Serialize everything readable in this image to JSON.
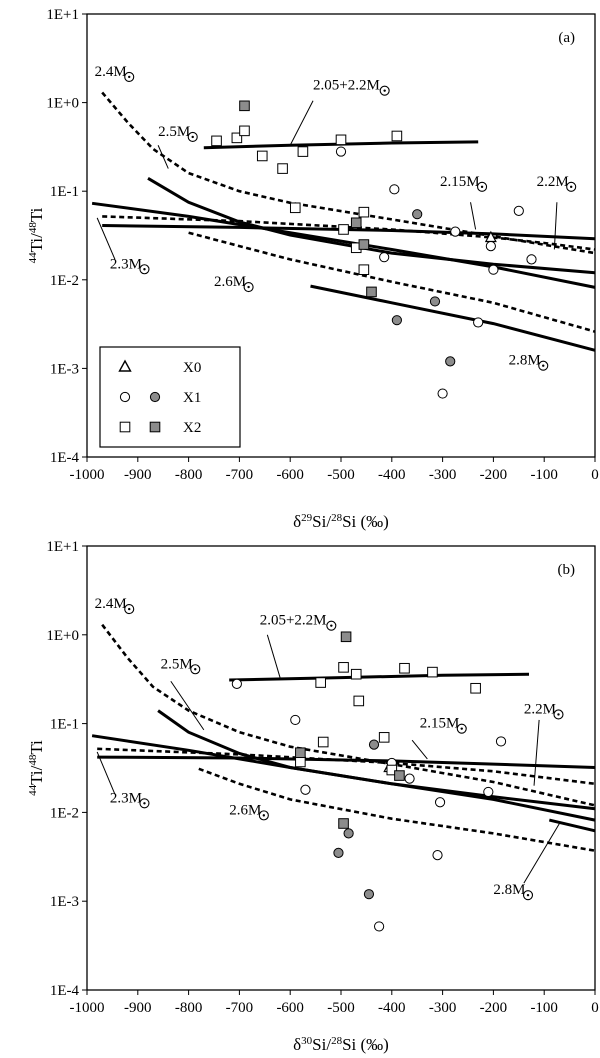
{
  "chart_data": [
    {
      "type": "scatter",
      "panel_label": "(a)",
      "xlabel": "δ29Si/28Si (‰)",
      "xlabel_parts": {
        "pre": "δ",
        "sup1": "29",
        "mid": "Si/",
        "sup2": "28",
        "post": "Si (‰)"
      },
      "ylabel": "44Ti/48Ti",
      "xlim": [
        -1000,
        0
      ],
      "ylim": [
        0.0001,
        10
      ],
      "yscale": "log",
      "xticks": [
        -1000,
        -900,
        -800,
        -700,
        -600,
        -500,
        -400,
        -300,
        -200,
        -100,
        0
      ],
      "yticks": [
        {
          "v": 0.0001,
          "label": "1E-4"
        },
        {
          "v": 0.001,
          "label": "1E-3"
        },
        {
          "v": 0.01,
          "label": "1E-2"
        },
        {
          "v": 0.1,
          "label": "1E-1"
        },
        {
          "v": 1,
          "label": "1E+0"
        },
        {
          "v": 10,
          "label": "1E+1"
        }
      ],
      "legend": {
        "position": "bottom-left",
        "entries": [
          "X0",
          "X1",
          "X2"
        ]
      },
      "series": [
        {
          "name": "X0",
          "marker": "triangle-open",
          "points": [
            [
              -205,
              0.03
            ]
          ]
        },
        {
          "name": "X1",
          "marker": "circle-open",
          "points": [
            [
              -500,
              0.28
            ],
            [
              -395,
              0.105
            ],
            [
              -415,
              0.018
            ],
            [
              -275,
              0.035
            ],
            [
              -205,
              0.024
            ],
            [
              -200,
              0.013
            ],
            [
              -150,
              0.06
            ],
            [
              -125,
              0.017
            ],
            [
              -230,
              0.0033
            ],
            [
              -300,
              0.00052
            ]
          ]
        },
        {
          "name": "X1",
          "marker": "circle-filled",
          "points": [
            [
              -350,
              0.055
            ],
            [
              -390,
              0.0035
            ],
            [
              -315,
              0.0057
            ],
            [
              -285,
              0.0012
            ]
          ]
        },
        {
          "name": "X2",
          "marker": "square-open",
          "points": [
            [
              -745,
              0.37
            ],
            [
              -705,
              0.4
            ],
            [
              -690,
              0.48
            ],
            [
              -655,
              0.25
            ],
            [
              -615,
              0.18
            ],
            [
              -575,
              0.28
            ],
            [
              -500,
              0.38
            ],
            [
              -390,
              0.42
            ],
            [
              -590,
              0.065
            ],
            [
              -495,
              0.037
            ],
            [
              -470,
              0.023
            ],
            [
              -455,
              0.058
            ],
            [
              -455,
              0.013
            ]
          ]
        },
        {
          "name": "X2",
          "marker": "square-filled",
          "points": [
            [
              -690,
              0.92
            ],
            [
              -470,
              0.044
            ],
            [
              -455,
              0.025
            ],
            [
              -440,
              0.0073
            ]
          ]
        }
      ],
      "curves": [
        {
          "label": "2.05+2.2M",
          "style": "solid",
          "points": [
            [
              -770,
              0.31
            ],
            [
              -600,
              0.33
            ],
            [
              -400,
              0.35
            ],
            [
              -230,
              0.36
            ]
          ]
        },
        {
          "label": "2.15M",
          "style": "solid",
          "points": [
            [
              -970,
              0.041
            ],
            [
              -700,
              0.039
            ],
            [
              -400,
              0.036
            ],
            [
              -200,
              0.033
            ],
            [
              0,
              0.029
            ]
          ]
        },
        {
          "label": "2.2M",
          "style": "dashed",
          "points": [
            [
              -970,
              0.052
            ],
            [
              -700,
              0.046
            ],
            [
              -400,
              0.037
            ],
            [
              -200,
              0.03
            ],
            [
              -100,
              0.026
            ],
            [
              0,
              0.022
            ]
          ]
        },
        {
          "label": "2.3M",
          "style": "solid",
          "points": [
            [
              -990,
              0.073
            ],
            [
              -800,
              0.052
            ],
            [
              -600,
              0.034
            ],
            [
              -400,
              0.022
            ],
            [
              -200,
              0.014
            ],
            [
              0,
              0.0082
            ]
          ]
        },
        {
          "label": "2.4M",
          "style": "dashed",
          "points": [
            [
              -970,
              1.3
            ],
            [
              -920,
              0.6
            ],
            [
              -870,
              0.3
            ],
            [
              -800,
              0.16
            ],
            [
              -700,
              0.1
            ],
            [
              -600,
              0.074
            ],
            [
              -400,
              0.048
            ],
            [
              -200,
              0.031
            ],
            [
              0,
              0.02
            ]
          ]
        },
        {
          "label": "2.5M",
          "style": "solid",
          "points": [
            [
              -880,
              0.14
            ],
            [
              -800,
              0.075
            ],
            [
              -700,
              0.045
            ],
            [
              -600,
              0.032
            ],
            [
              -400,
              0.02
            ],
            [
              -200,
              0.015
            ],
            [
              0,
              0.012
            ]
          ]
        },
        {
          "label": "2.6M",
          "style": "dashed",
          "points": [
            [
              -800,
              0.034
            ],
            [
              -700,
              0.024
            ],
            [
              -600,
              0.017
            ],
            [
              -400,
              0.0095
            ],
            [
              -200,
              0.0055
            ],
            [
              0,
              0.0026
            ]
          ]
        },
        {
          "label": "2.8M",
          "style": "solid",
          "points": [
            [
              -560,
              0.0085
            ],
            [
              -400,
              0.0055
            ],
            [
              -200,
              0.0032
            ],
            [
              0,
              0.0016
            ]
          ]
        }
      ],
      "annotations": [
        {
          "text": "2.4M",
          "at": [
            -985,
            2.0
          ]
        },
        {
          "text": "2.05+2.2M",
          "at": [
            -555,
            1.4
          ]
        },
        {
          "text": "2.5M",
          "at": [
            -860,
            0.42
          ]
        },
        {
          "text": "2.15M",
          "at": [
            -305,
            0.115
          ]
        },
        {
          "text": "2.2M",
          "at": [
            -115,
            0.115
          ]
        },
        {
          "text": "2.3M",
          "at": [
            -955,
            0.0135
          ]
        },
        {
          "text": "2.6M",
          "at": [
            -750,
            0.0085
          ]
        },
        {
          "text": "2.8M",
          "at": [
            -170,
            0.0011
          ]
        }
      ]
    },
    {
      "type": "scatter",
      "panel_label": "(b)",
      "xlabel": "δ30Si/28Si (‰)",
      "xlabel_parts": {
        "pre": "δ",
        "sup1": "30",
        "mid": "Si/",
        "sup2": "28",
        "post": "Si (‰)"
      },
      "ylabel": "44Ti/48Ti",
      "xlim": [
        -1000,
        0
      ],
      "ylim": [
        0.0001,
        10
      ],
      "yscale": "log",
      "xticks": [
        -1000,
        -900,
        -800,
        -700,
        -600,
        -500,
        -400,
        -300,
        -200,
        -100,
        0
      ],
      "yticks": [
        {
          "v": 0.0001,
          "label": "1E-4"
        },
        {
          "v": 0.001,
          "label": "1E-3"
        },
        {
          "v": 0.01,
          "label": "1E-2"
        },
        {
          "v": 0.1,
          "label": "1E-1"
        },
        {
          "v": 1,
          "label": "1E+0"
        },
        {
          "v": 10,
          "label": "1E+1"
        }
      ],
      "series": [
        {
          "name": "X0",
          "marker": "triangle-open",
          "points": [
            [
              -405,
              0.032
            ]
          ]
        },
        {
          "name": "X1",
          "marker": "circle-open",
          "points": [
            [
              -705,
              0.28
            ],
            [
              -590,
              0.11
            ],
            [
              -570,
              0.018
            ],
            [
              -400,
              0.036
            ],
            [
              -365,
              0.024
            ],
            [
              -305,
              0.013
            ],
            [
              -310,
              0.0033
            ],
            [
              -210,
              0.017
            ],
            [
              -185,
              0.063
            ],
            [
              -425,
              0.00052
            ]
          ]
        },
        {
          "name": "X1",
          "marker": "circle-filled",
          "points": [
            [
              -505,
              0.0035
            ],
            [
              -485,
              0.0058
            ],
            [
              -435,
              0.058
            ],
            [
              -445,
              0.0012
            ]
          ]
        },
        {
          "name": "X2",
          "marker": "square-open",
          "points": [
            [
              -540,
              0.29
            ],
            [
              -495,
              0.43
            ],
            [
              -470,
              0.36
            ],
            [
              -465,
              0.18
            ],
            [
              -375,
              0.42
            ],
            [
              -320,
              0.38
            ],
            [
              -235,
              0.25
            ],
            [
              -535,
              0.062
            ],
            [
              -580,
              0.037
            ],
            [
              -415,
              0.07
            ],
            [
              -400,
              0.03
            ]
          ]
        },
        {
          "name": "X2",
          "marker": "square-filled",
          "points": [
            [
              -490,
              0.95
            ],
            [
              -580,
              0.047
            ],
            [
              -495,
              0.0075
            ],
            [
              -385,
              0.026
            ]
          ]
        }
      ],
      "curves": [
        {
          "label": "2.05+2.2M",
          "style": "solid",
          "points": [
            [
              -720,
              0.31
            ],
            [
              -500,
              0.33
            ],
            [
              -300,
              0.35
            ],
            [
              -130,
              0.36
            ]
          ]
        },
        {
          "label": "2.15M",
          "style": "solid",
          "points": [
            [
              -980,
              0.042
            ],
            [
              -700,
              0.041
            ],
            [
              -400,
              0.038
            ],
            [
              -200,
              0.035
            ],
            [
              0,
              0.032
            ]
          ]
        },
        {
          "label": "2.2M",
          "style": "dashed",
          "points": [
            [
              -980,
              0.052
            ],
            [
              -700,
              0.045
            ],
            [
              -400,
              0.036
            ],
            [
              -200,
              0.029
            ],
            [
              0,
              0.021
            ]
          ]
        },
        {
          "label": "2.3M",
          "style": "solid",
          "points": [
            [
              -990,
              0.073
            ],
            [
              -800,
              0.05
            ],
            [
              -600,
              0.032
            ],
            [
              -400,
              0.021
            ],
            [
              -200,
              0.014
            ],
            [
              0,
              0.0082
            ]
          ]
        },
        {
          "label": "2.4M",
          "style": "dashed",
          "points": [
            [
              -970,
              1.3
            ],
            [
              -920,
              0.55
            ],
            [
              -870,
              0.26
            ],
            [
              -800,
              0.14
            ],
            [
              -700,
              0.08
            ],
            [
              -600,
              0.055
            ],
            [
              -400,
              0.035
            ],
            [
              -200,
              0.022
            ],
            [
              0,
              0.012
            ]
          ]
        },
        {
          "label": "2.5M",
          "style": "solid",
          "points": [
            [
              -860,
              0.14
            ],
            [
              -800,
              0.08
            ],
            [
              -700,
              0.046
            ],
            [
              -600,
              0.032
            ],
            [
              -400,
              0.021
            ],
            [
              -200,
              0.015
            ],
            [
              0,
              0.011
            ]
          ]
        },
        {
          "label": "2.6M",
          "style": "dashed",
          "points": [
            [
              -780,
              0.031
            ],
            [
              -700,
              0.021
            ],
            [
              -600,
              0.014
            ],
            [
              -400,
              0.0085
            ],
            [
              -200,
              0.0058
            ],
            [
              0,
              0.0037
            ]
          ]
        },
        {
          "label": "2.8M",
          "style": "solid",
          "points": [
            [
              -90,
              0.0082
            ],
            [
              0,
              0.0062
            ]
          ]
        }
      ],
      "annotations": [
        {
          "text": "2.4M",
          "at": [
            -985,
            2.0
          ]
        },
        {
          "text": "2.05+2.2M",
          "at": [
            -660,
            1.3
          ]
        },
        {
          "text": "2.5M",
          "at": [
            -855,
            0.42
          ]
        },
        {
          "text": "2.15M",
          "at": [
            -345,
            0.09
          ]
        },
        {
          "text": "2.2M",
          "at": [
            -140,
            0.13
          ]
        },
        {
          "text": "2.3M",
          "at": [
            -955,
            0.013
          ]
        },
        {
          "text": "2.6M",
          "at": [
            -720,
            0.0095
          ]
        },
        {
          "text": "2.8M",
          "at": [
            -200,
            0.0012
          ]
        }
      ]
    }
  ]
}
